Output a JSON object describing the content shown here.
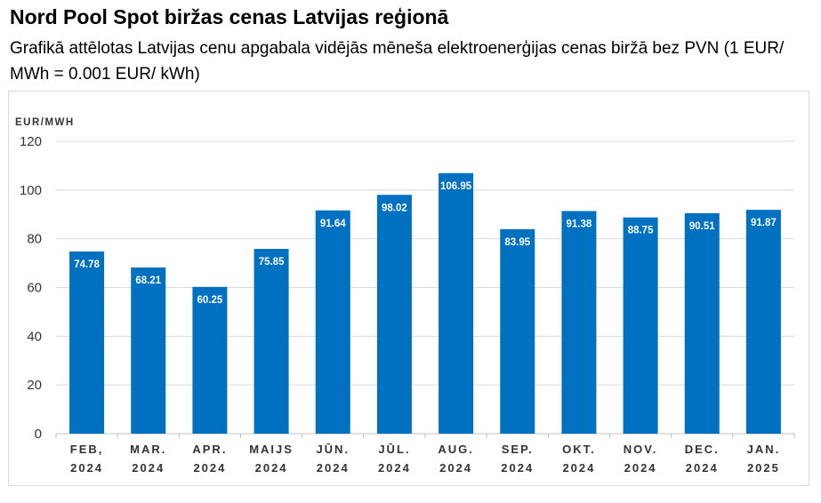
{
  "title": "Nord Pool Spot biržas cenas Latvijas reģionā",
  "subtitle": "Grafikā attēlotas Latvijas cenu apgabala vidējās mēneša elektroenerģijas cenas biržā bez PVN (1 EUR/ MWh = 0.001 EUR/ kWh)",
  "chart_data": {
    "type": "bar",
    "ylabel": "EUR/MWH",
    "xlabel": "",
    "ylim": [
      0,
      120
    ],
    "yticks": [
      0,
      20,
      40,
      60,
      80,
      100,
      120
    ],
    "grid": true,
    "categories": [
      [
        "FEB,",
        "2024"
      ],
      [
        "MAR.",
        "2024"
      ],
      [
        "APR.",
        "2024"
      ],
      [
        "MAIJS",
        "2024"
      ],
      [
        "JŪN.",
        "2024"
      ],
      [
        "JŪL.",
        "2024"
      ],
      [
        "AUG.",
        "2024"
      ],
      [
        "SEP.",
        "2024"
      ],
      [
        "OKT.",
        "2024"
      ],
      [
        "NOV.",
        "2024"
      ],
      [
        "DEC.",
        "2024"
      ],
      [
        "JAN.",
        "2025"
      ]
    ],
    "values": [
      74.78,
      68.21,
      60.25,
      75.85,
      91.64,
      98.02,
      106.95,
      83.95,
      91.38,
      88.75,
      90.51,
      91.87
    ],
    "data_labels": [
      "74.78",
      "68.21",
      "60.25",
      "75.85",
      "91.64",
      "98.02",
      "106.95",
      "83.95",
      "91.38",
      "88.75",
      "90.51",
      "91.87"
    ],
    "bar_color": "#0070c0",
    "grid_color": "#d9d9d9"
  }
}
